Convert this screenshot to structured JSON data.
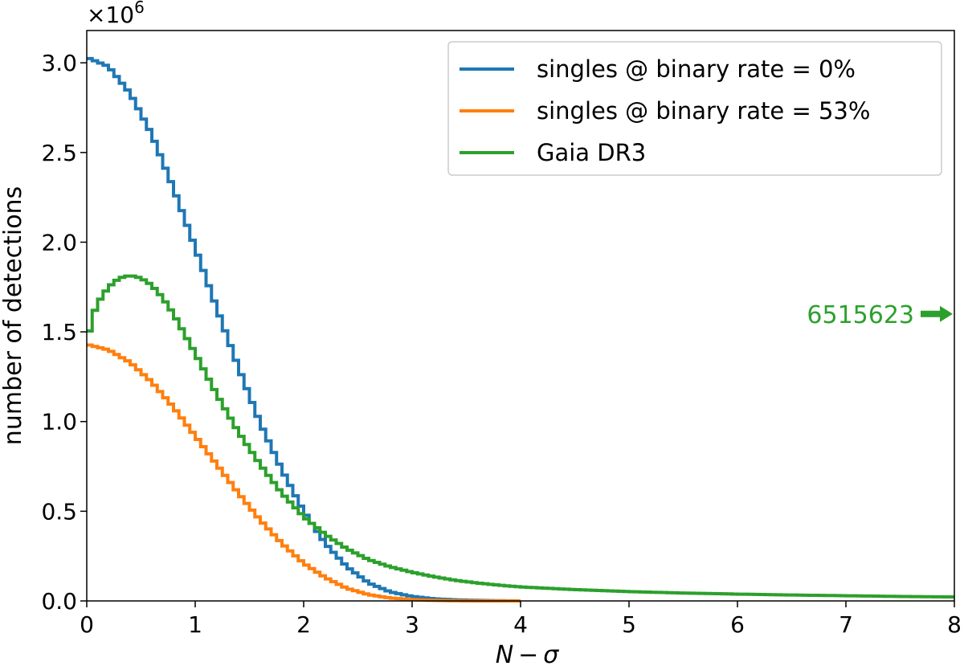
{
  "chart_data": {
    "type": "line",
    "style": "step",
    "title": "",
    "xlabel_main": "N",
    "xlabel_op": "−",
    "xlabel_sym": "σ",
    "ylabel": "number of detections",
    "y_multiplier": "×10",
    "y_multiplier_exp": "6",
    "xlim": [
      0,
      8
    ],
    "ylim": [
      0,
      3.18
    ],
    "x_ticks": [
      0,
      1,
      2,
      3,
      4,
      5,
      6,
      7,
      8
    ],
    "x_tick_labels": [
      "0",
      "1",
      "2",
      "3",
      "4",
      "5",
      "6",
      "7",
      "8"
    ],
    "y_ticks": [
      0,
      0.5,
      1.0,
      1.5,
      2.0,
      2.5,
      3.0
    ],
    "y_tick_labels": [
      "0.0",
      "0.5",
      "1.0",
      "1.5",
      "2.0",
      "2.5",
      "3.0"
    ],
    "legend_position": "top-right",
    "series": [
      {
        "name": "singles @ binary rate = 0%",
        "color": "#1f77b4",
        "x": [
          0.0,
          0.2,
          0.4,
          0.6,
          0.8,
          1.0,
          1.2,
          1.4,
          1.6,
          1.8,
          2.0,
          2.2,
          2.4,
          2.6,
          2.8,
          3.0,
          3.2,
          3.4,
          3.6,
          3.8,
          4.0
        ],
        "values": [
          3.03,
          2.98,
          2.83,
          2.6,
          2.3,
          1.97,
          1.63,
          1.3,
          0.99,
          0.73,
          0.5,
          0.32,
          0.19,
          0.1,
          0.05,
          0.025,
          0.012,
          0.006,
          0.003,
          0.001,
          0.0
        ]
      },
      {
        "name": "singles @ binary rate = 53%",
        "color": "#ff7f0e",
        "x": [
          0.0,
          0.2,
          0.4,
          0.6,
          0.8,
          1.0,
          1.2,
          1.4,
          1.6,
          1.8,
          2.0,
          2.2,
          2.4,
          2.6,
          2.8,
          3.0,
          3.2,
          3.4,
          3.6,
          3.8,
          4.0
        ],
        "values": [
          1.43,
          1.4,
          1.33,
          1.22,
          1.08,
          0.92,
          0.76,
          0.6,
          0.45,
          0.32,
          0.21,
          0.13,
          0.07,
          0.035,
          0.016,
          0.007,
          0.003,
          0.001,
          0.0,
          0.0,
          0.0
        ]
      },
      {
        "name": "Gaia DR3",
        "color": "#2ca02c",
        "x": [
          0.0,
          0.05,
          0.1,
          0.2,
          0.3,
          0.4,
          0.5,
          0.6,
          0.7,
          0.8,
          1.0,
          1.2,
          1.4,
          1.6,
          1.8,
          2.0,
          2.2,
          2.4,
          2.6,
          2.8,
          3.0,
          3.2,
          3.4,
          3.6,
          3.8,
          4.0,
          4.5,
          5.0,
          5.5,
          6.0,
          6.5,
          7.0,
          7.5,
          8.0
        ],
        "values": [
          1.43,
          1.58,
          1.66,
          1.75,
          1.8,
          1.815,
          1.8,
          1.76,
          1.69,
          1.6,
          1.38,
          1.15,
          0.94,
          0.76,
          0.6,
          0.47,
          0.37,
          0.29,
          0.23,
          0.19,
          0.16,
          0.135,
          0.115,
          0.1,
          0.088,
          0.078,
          0.063,
          0.052,
          0.044,
          0.038,
          0.033,
          0.029,
          0.025,
          0.022
        ]
      }
    ],
    "annotation": {
      "text": "6515623",
      "x": 8,
      "y": 1.6,
      "color": "#2ca02c",
      "arrow": "right"
    }
  }
}
